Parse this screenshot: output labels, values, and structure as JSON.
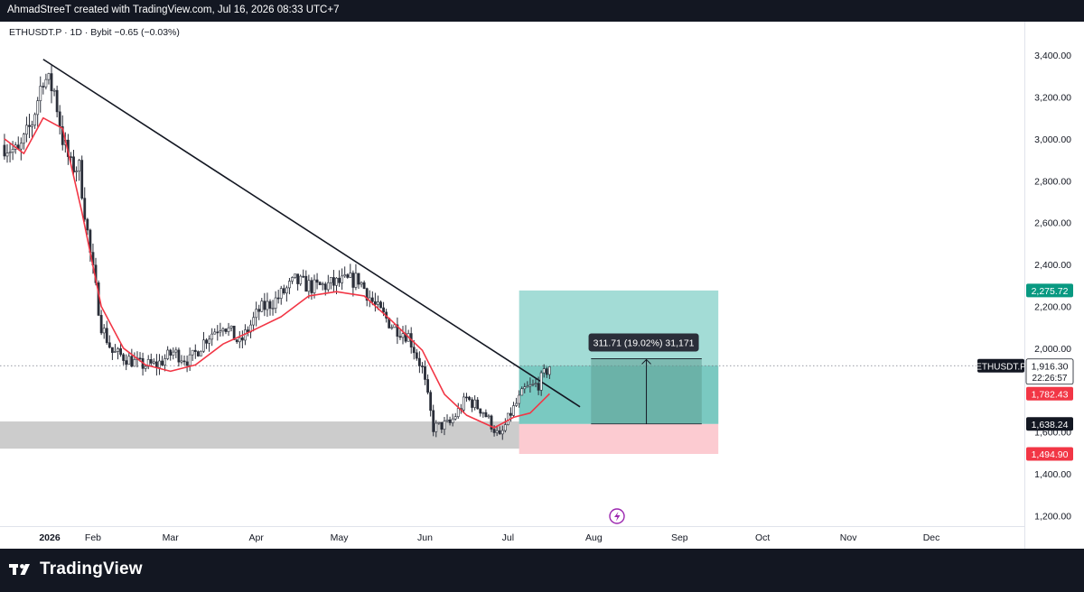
{
  "header": {
    "caption": "AhmadStreeT created with TradingView.com, Jul 16, 2026 08:33 UTC+7"
  },
  "legend": {
    "symbol_line": "ETHUSDT.P · 1D · Bybit  −0.65 (−0.03%)"
  },
  "footer": {
    "brand": "TradingView"
  },
  "colors": {
    "up": "#2a2e39",
    "moving_average": "#f23645",
    "profit_zone": "#a3dcd6",
    "profit_zone_dark": "#6fc4bc",
    "loss_zone": "#fccbd1",
    "support_zone": "#c9c9c9",
    "target_badge": "#089981",
    "stop_badge": "#f23645"
  },
  "chart_data": {
    "type": "candlestick",
    "title": "",
    "symbol": "ETHUSDT.P",
    "interval": "1D",
    "exchange": "Bybit",
    "x_tick_labels": [
      "2026",
      "Feb",
      "Mar",
      "Apr",
      "May",
      "Jun",
      "Jul",
      "Aug",
      "Sep",
      "Oct",
      "Nov",
      "Dec"
    ],
    "x_start": "2026-01-01",
    "x_end": "2026-12-31",
    "y_tick_labels": [
      "3,400.00",
      "3,200.00",
      "3,000.00",
      "2,800.00",
      "2,600.00",
      "2,400.00",
      "2,200.00",
      "2,000.00",
      "1,800.00",
      "1,600.00",
      "1,400.00",
      "1,200.00"
    ],
    "ylim": [
      1150,
      3560
    ],
    "price_path": [
      [
        "2025-12-31",
        2970
      ],
      [
        "2026-01-05",
        2930
      ],
      [
        "2026-01-10",
        3080
      ],
      [
        "2026-01-14",
        3300
      ],
      [
        "2026-01-18",
        3230
      ],
      [
        "2026-01-21",
        3000
      ],
      [
        "2026-01-24",
        2870
      ],
      [
        "2026-01-27",
        2860
      ],
      [
        "2026-01-31",
        2450
      ],
      [
        "2026-02-04",
        2110
      ],
      [
        "2026-02-08",
        1980
      ],
      [
        "2026-02-12",
        1960
      ],
      [
        "2026-02-18",
        1920
      ],
      [
        "2026-02-24",
        1920
      ],
      [
        "2026-03-02",
        1980
      ],
      [
        "2026-03-08",
        1940
      ],
      [
        "2026-03-14",
        2050
      ],
      [
        "2026-03-20",
        2120
      ],
      [
        "2026-03-26",
        2020
      ],
      [
        "2026-04-02",
        2180
      ],
      [
        "2026-04-08",
        2230
      ],
      [
        "2026-04-15",
        2320
      ],
      [
        "2026-04-22",
        2290
      ],
      [
        "2026-04-30",
        2310
      ],
      [
        "2026-05-08",
        2330
      ],
      [
        "2026-05-14",
        2200
      ],
      [
        "2026-05-20",
        2110
      ],
      [
        "2026-05-26",
        2060
      ],
      [
        "2026-05-31",
        1900
      ],
      [
        "2026-06-04",
        1620
      ],
      [
        "2026-06-10",
        1640
      ],
      [
        "2026-06-16",
        1760
      ],
      [
        "2026-06-22",
        1700
      ],
      [
        "2026-06-28",
        1570
      ],
      [
        "2026-07-02",
        1690
      ],
      [
        "2026-07-07",
        1800
      ],
      [
        "2026-07-12",
        1830
      ],
      [
        "2026-07-16",
        1916
      ]
    ],
    "ma_path": [
      [
        "2025-12-31",
        3000
      ],
      [
        "2026-01-07",
        2930
      ],
      [
        "2026-01-14",
        3100
      ],
      [
        "2026-01-21",
        3050
      ],
      [
        "2026-01-28",
        2650
      ],
      [
        "2026-02-04",
        2200
      ],
      [
        "2026-02-12",
        2000
      ],
      [
        "2026-02-20",
        1920
      ],
      [
        "2026-03-01",
        1890
      ],
      [
        "2026-03-10",
        1920
      ],
      [
        "2026-03-20",
        2020
      ],
      [
        "2026-03-30",
        2080
      ],
      [
        "2026-04-10",
        2150
      ],
      [
        "2026-04-20",
        2250
      ],
      [
        "2026-04-30",
        2270
      ],
      [
        "2026-05-10",
        2250
      ],
      [
        "2026-05-20",
        2130
      ],
      [
        "2026-05-31",
        1990
      ],
      [
        "2026-06-08",
        1780
      ],
      [
        "2026-06-16",
        1680
      ],
      [
        "2026-06-26",
        1620
      ],
      [
        "2026-07-03",
        1670
      ],
      [
        "2026-07-09",
        1690
      ],
      [
        "2026-07-16",
        1782.43
      ]
    ],
    "trendline": {
      "from": [
        "2026-01-14",
        3380
      ],
      "to": [
        "2026-07-27",
        1720
      ]
    },
    "support_zone": {
      "from": "2025-12-31",
      "to": "2026-07-06",
      "low": 1520,
      "high": 1650
    },
    "position": {
      "type": "long",
      "from": "2026-07-05",
      "to": "2026-09-15",
      "entry": 1638.24,
      "target": 2275.72,
      "stop": 1494.9,
      "filled_to": "2026-07-16"
    },
    "measure": {
      "label": "311.71 (19.02%) 31,171",
      "from": "2026-07-31",
      "to": "2026-09-09",
      "low": 1638.24,
      "high": 1950
    },
    "current_price": 1916.3,
    "countdown": "22:26:57",
    "price_labels": {
      "target": "2,275.72",
      "current": "1,916.30",
      "ma": "1,782.43",
      "entry": "1,638.24",
      "stop": "1,494.90",
      "symbol": "ETHUSDT.P"
    }
  }
}
